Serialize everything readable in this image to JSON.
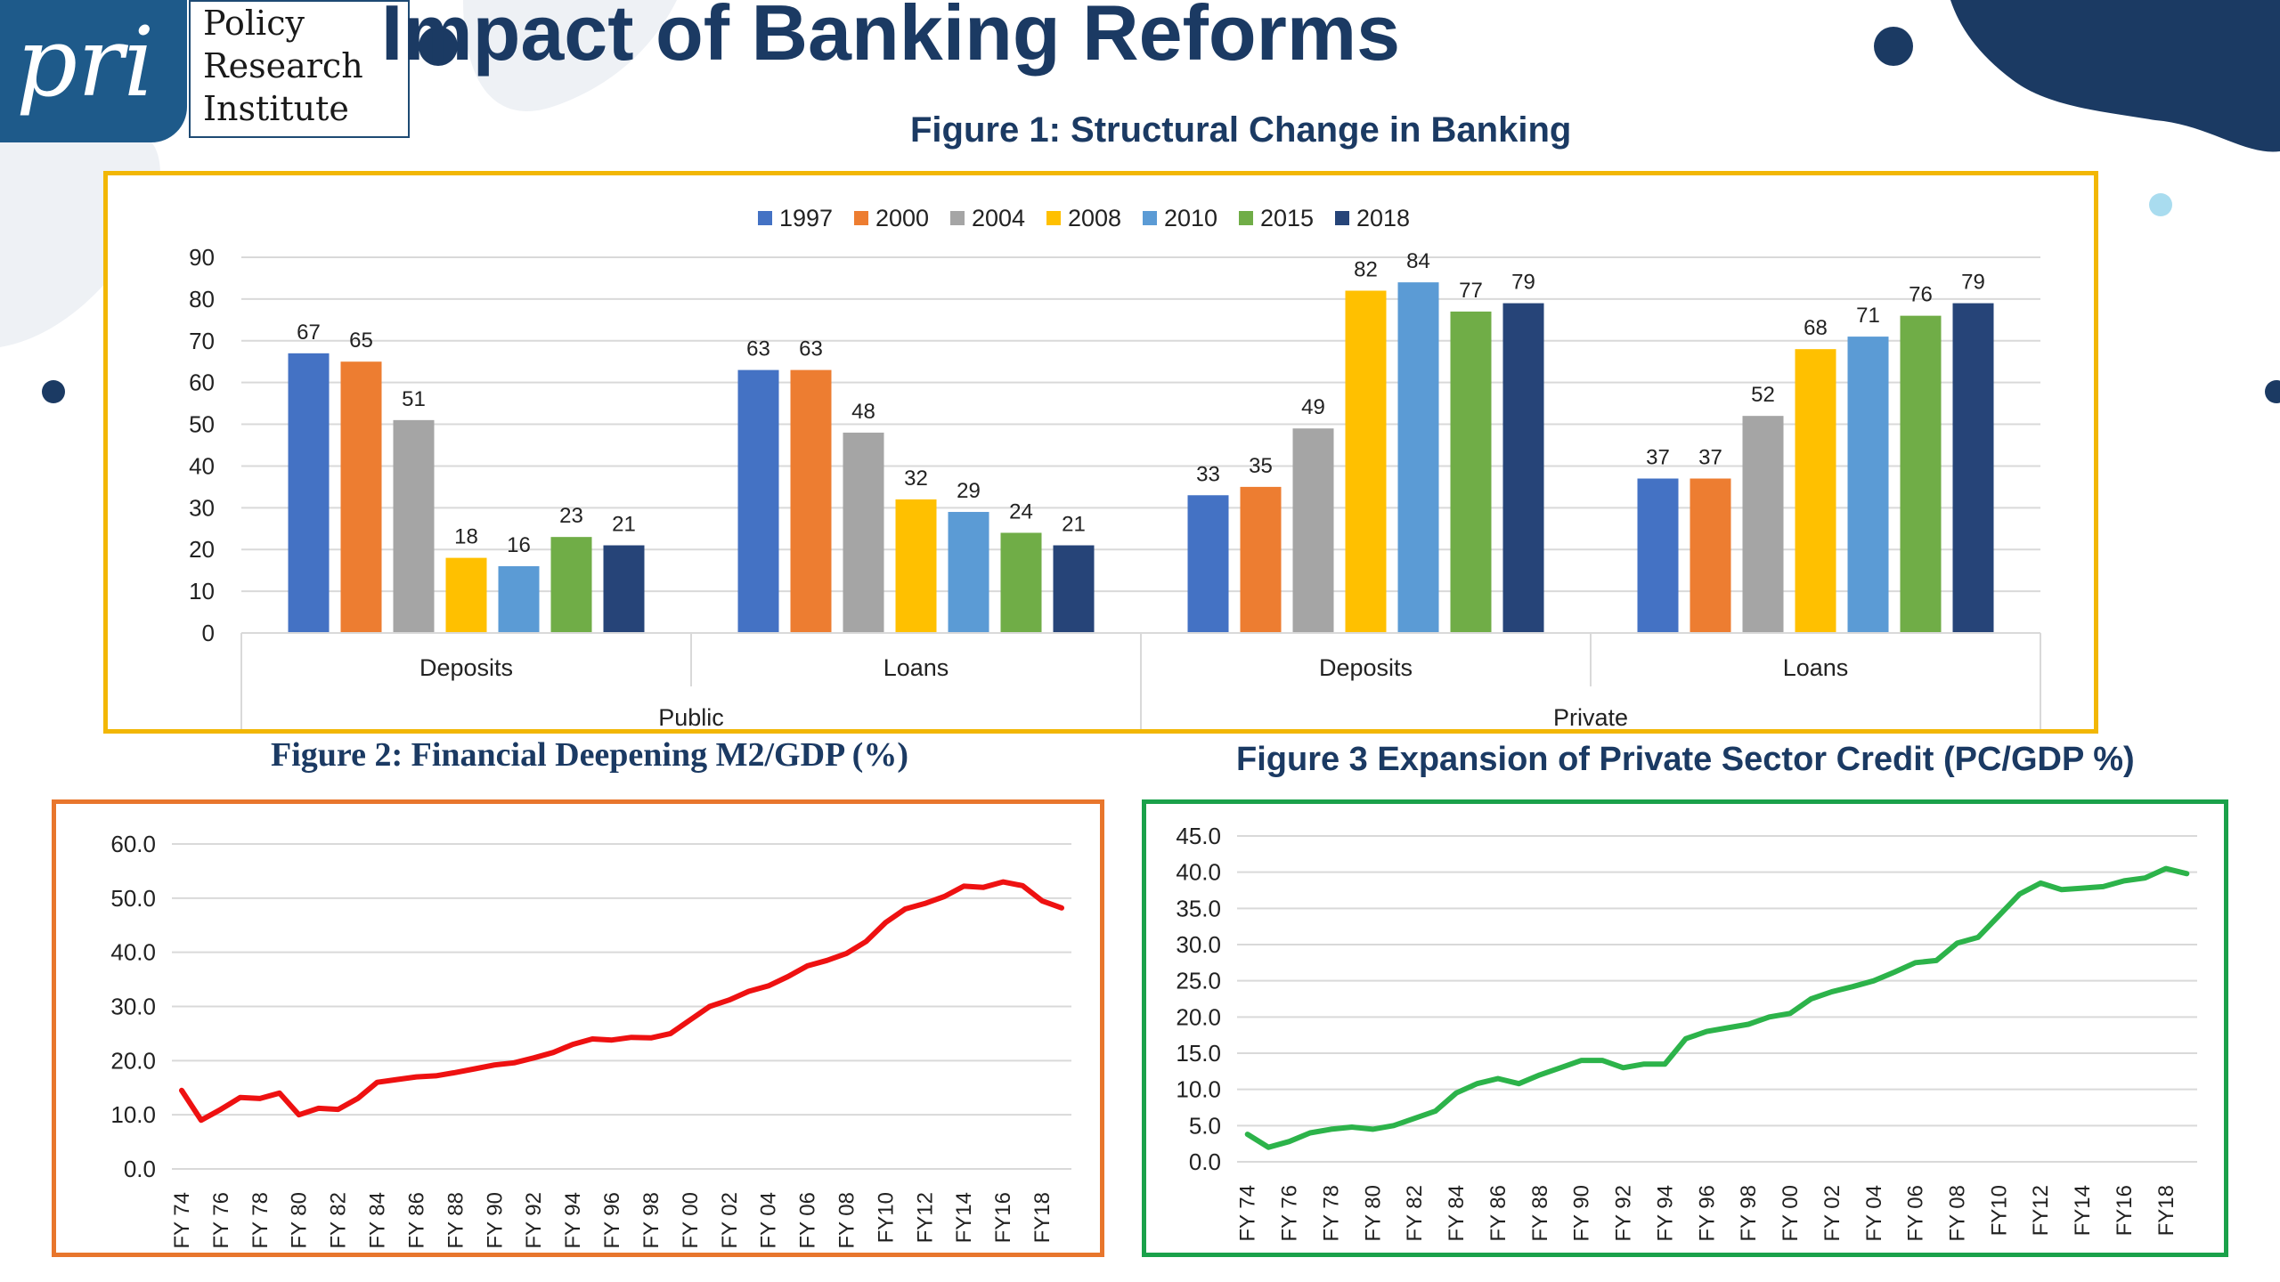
{
  "header": {
    "logo_mark": "pri",
    "logo_lines": [
      "Policy",
      "Research",
      "Institute"
    ],
    "title": "Impact of Banking Reforms"
  },
  "colors": {
    "navy": "#1b3a63",
    "deco_light": "#7ec8e3",
    "deco_dark": "#1b3a63",
    "fig1_border": "#f2b705",
    "fig2_border": "#e8762c",
    "fig3_border": "#1aa14a",
    "fig2_line": "#ee1111",
    "fig3_line": "#2cb34a"
  },
  "figures": {
    "fig1_title": "Figure 1: Structural Change in Banking",
    "fig2_title": "Figure 2: Financial Deepening M2/GDP (%)",
    "fig3_title": "Figure 3 Expansion of Private Sector Credit (PC/GDP %)"
  },
  "chart_data": [
    {
      "type": "bar",
      "title": "Figure 1: Structural Change in Banking",
      "categories": [
        "Deposits",
        "Loans",
        "Deposits",
        "Loans"
      ],
      "groups": [
        "Public",
        "Private"
      ],
      "ylim": [
        0,
        90
      ],
      "yticks": [
        0,
        10,
        20,
        30,
        40,
        50,
        60,
        70,
        80,
        90
      ],
      "legend_position": "top",
      "series": [
        {
          "name": "1997",
          "color": "#4472c4",
          "values": [
            67,
            63,
            33,
            37
          ]
        },
        {
          "name": "2000",
          "color": "#ed7d31",
          "values": [
            65,
            63,
            35,
            37
          ]
        },
        {
          "name": "2004",
          "color": "#a5a5a5",
          "values": [
            51,
            48,
            49,
            52
          ]
        },
        {
          "name": "2008",
          "color": "#ffc000",
          "values": [
            18,
            32,
            82,
            68
          ]
        },
        {
          "name": "2010",
          "color": "#5b9bd5",
          "values": [
            16,
            29,
            84,
            71
          ]
        },
        {
          "name": "2015",
          "color": "#70ad47",
          "values": [
            23,
            24,
            77,
            76
          ]
        },
        {
          "name": "2018",
          "color": "#264478",
          "values": [
            21,
            21,
            79,
            79
          ]
        }
      ]
    },
    {
      "type": "line",
      "title": "Figure 2: Financial Deepening M2/GDP (%)",
      "ylim": [
        0,
        60
      ],
      "yticks": [
        "0.0",
        "10.0",
        "20.0",
        "30.0",
        "40.0",
        "50.0",
        "60.0"
      ],
      "x": [
        "FY 74",
        "FY 75",
        "FY 76",
        "FY 77",
        "FY 78",
        "FY 79",
        "FY 80",
        "FY 81",
        "FY 82",
        "FY 83",
        "FY 84",
        "FY 85",
        "FY 86",
        "FY 87",
        "FY 88",
        "FY 89",
        "FY 90",
        "FY 91",
        "FY 92",
        "FY 93",
        "FY 94",
        "FY 95",
        "FY 96",
        "FY 97",
        "FY 98",
        "FY 99",
        "FY 00",
        "FY 01",
        "FY 02",
        "FY 03",
        "FY 04",
        "FY 05",
        "FY 06",
        "FY 07",
        "FY 08",
        "FY 09",
        "FY10",
        "FY11",
        "FY12",
        "FY13",
        "FY14",
        "FY15",
        "FY16",
        "FY17",
        "FY18",
        "FY19"
      ],
      "tick_labels": [
        "FY 74",
        "FY 76",
        "FY 78",
        "FY 80",
        "FY 82",
        "FY 84",
        "FY 86",
        "FY 88",
        "FY 90",
        "FY 92",
        "FY 94",
        "FY 96",
        "FY 98",
        "FY 00",
        "FY 02",
        "FY 04",
        "FY 06",
        "FY 08",
        "FY10",
        "FY12",
        "FY14",
        "FY16",
        "FY18"
      ],
      "series": [
        {
          "name": "M2/GDP",
          "values": [
            14.5,
            9.0,
            11.0,
            13.2,
            13.0,
            14.0,
            10.0,
            11.2,
            11.0,
            13.0,
            16.0,
            16.5,
            17.0,
            17.2,
            17.8,
            18.5,
            19.2,
            19.6,
            20.5,
            21.5,
            23.0,
            24.0,
            23.8,
            24.3,
            24.2,
            25.0,
            27.5,
            30.0,
            31.2,
            32.8,
            33.8,
            35.5,
            37.5,
            38.5,
            39.8,
            42.0,
            45.5,
            48.0,
            49.0,
            50.3,
            52.2,
            52.0,
            53.0,
            52.3,
            49.5,
            48.2
          ]
        }
      ]
    },
    {
      "type": "line",
      "title": "Figure 3 Expansion of Private Sector Credit (PC/GDP %)",
      "ylim": [
        0,
        45
      ],
      "yticks": [
        "0.0",
        "5.0",
        "10.0",
        "15.0",
        "20.0",
        "25.0",
        "30.0",
        "35.0",
        "40.0",
        "45.0"
      ],
      "x": [
        "FY 74",
        "FY 75",
        "FY 76",
        "FY 77",
        "FY 78",
        "FY 79",
        "FY 80",
        "FY 81",
        "FY 82",
        "FY 83",
        "FY 84",
        "FY 85",
        "FY 86",
        "FY 87",
        "FY 88",
        "FY 89",
        "FY 90",
        "FY 91",
        "FY 92",
        "FY 93",
        "FY 94",
        "FY 95",
        "FY 96",
        "FY 97",
        "FY 98",
        "FY 99",
        "FY 00",
        "FY 01",
        "FY 02",
        "FY 03",
        "FY 04",
        "FY 05",
        "FY 06",
        "FY 07",
        "FY 08",
        "FY 09",
        "FY10",
        "FY11",
        "FY12",
        "FY13",
        "FY14",
        "FY15",
        "FY16",
        "FY17",
        "FY18",
        "FY19"
      ],
      "tick_labels": [
        "FY 74",
        "FY 76",
        "FY 78",
        "FY 80",
        "FY 82",
        "FY 84",
        "FY 86",
        "FY 88",
        "FY 90",
        "FY 92",
        "FY 94",
        "FY 96",
        "FY 98",
        "FY 00",
        "FY 02",
        "FY 04",
        "FY 06",
        "FY 08",
        "FY10",
        "FY12",
        "FY14",
        "FY16",
        "FY18"
      ],
      "series": [
        {
          "name": "PC/GDP",
          "values": [
            3.8,
            2.0,
            2.8,
            4.0,
            4.5,
            4.8,
            4.5,
            5.0,
            6.0,
            7.0,
            9.5,
            10.8,
            11.5,
            10.8,
            12.0,
            13.0,
            14.0,
            14.0,
            13.0,
            13.5,
            13.5,
            17.0,
            18.0,
            18.5,
            19.0,
            20.0,
            20.5,
            22.5,
            23.5,
            24.2,
            25.0,
            26.2,
            27.5,
            27.8,
            30.2,
            31.0,
            34.0,
            37.0,
            38.5,
            37.6,
            37.8,
            38.0,
            38.8,
            39.2,
            40.5,
            39.8
          ]
        }
      ]
    }
  ]
}
